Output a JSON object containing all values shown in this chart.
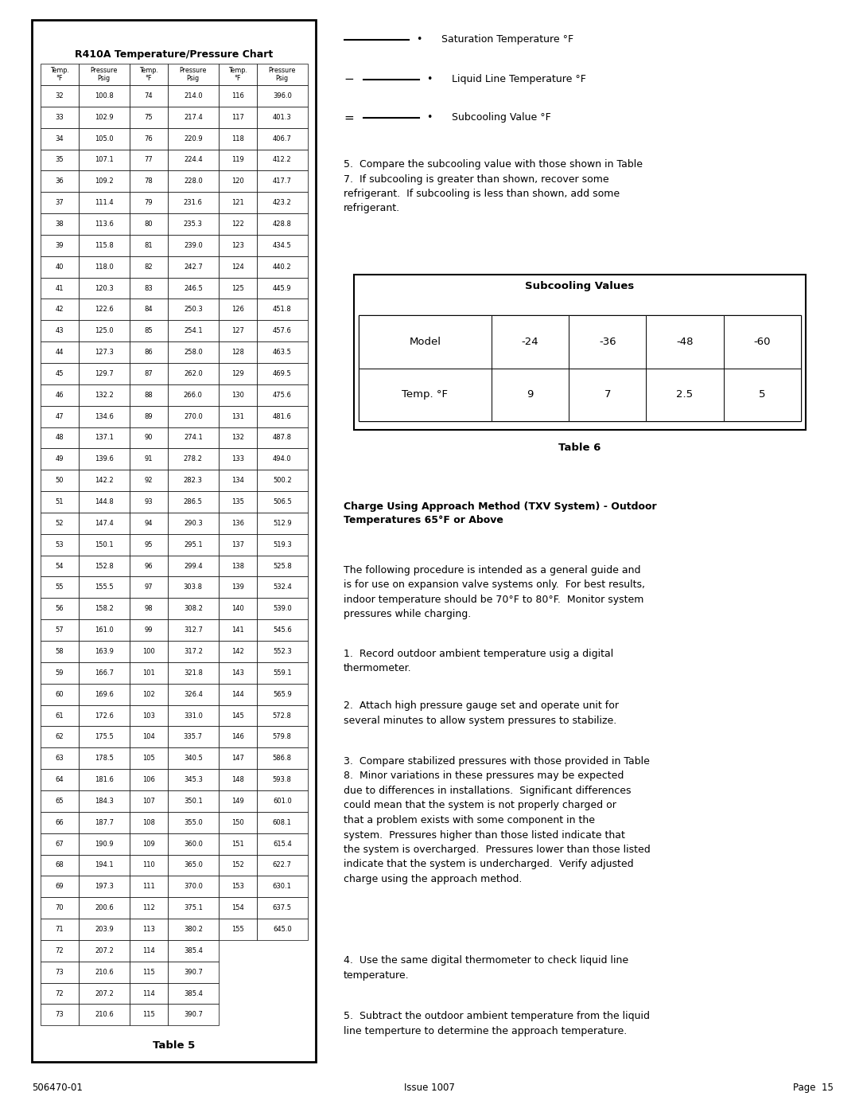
{
  "title": "R410A Temperature/Pressure Chart",
  "table5_title": "Table 5",
  "table6_title": "Table 6",
  "data_col1": [
    [
      32,
      100.8
    ],
    [
      33,
      102.9
    ],
    [
      34,
      105.0
    ],
    [
      35,
      107.1
    ],
    [
      36,
      109.2
    ],
    [
      37,
      111.4
    ],
    [
      38,
      113.6
    ],
    [
      39,
      115.8
    ],
    [
      40,
      118.0
    ],
    [
      41,
      120.3
    ],
    [
      42,
      122.6
    ],
    [
      43,
      125.0
    ],
    [
      44,
      127.3
    ],
    [
      45,
      129.7
    ],
    [
      46,
      132.2
    ],
    [
      47,
      134.6
    ],
    [
      48,
      137.1
    ],
    [
      49,
      139.6
    ],
    [
      50,
      142.2
    ],
    [
      51,
      144.8
    ],
    [
      52,
      147.4
    ],
    [
      53,
      150.1
    ],
    [
      54,
      152.8
    ],
    [
      55,
      155.5
    ],
    [
      56,
      158.2
    ],
    [
      57,
      161.0
    ],
    [
      58,
      163.9
    ],
    [
      59,
      166.7
    ],
    [
      60,
      169.6
    ],
    [
      61,
      172.6
    ],
    [
      62,
      175.5
    ],
    [
      63,
      178.5
    ],
    [
      64,
      181.6
    ],
    [
      65,
      184.3
    ],
    [
      66,
      187.7
    ],
    [
      67,
      190.9
    ],
    [
      68,
      194.1
    ],
    [
      69,
      197.3
    ],
    [
      70,
      200.6
    ],
    [
      71,
      203.9
    ],
    [
      72,
      207.2
    ],
    [
      73,
      210.6
    ],
    [
      72,
      207.2
    ],
    [
      73,
      210.6
    ]
  ],
  "data_col2": [
    [
      74,
      214.0
    ],
    [
      75,
      217.4
    ],
    [
      76,
      220.9
    ],
    [
      77,
      224.4
    ],
    [
      78,
      228.0
    ],
    [
      79,
      231.6
    ],
    [
      80,
      235.3
    ],
    [
      81,
      239.0
    ],
    [
      82,
      242.7
    ],
    [
      83,
      246.5
    ],
    [
      84,
      250.3
    ],
    [
      85,
      254.1
    ],
    [
      86,
      258.0
    ],
    [
      87,
      262.0
    ],
    [
      88,
      266.0
    ],
    [
      89,
      270.0
    ],
    [
      90,
      274.1
    ],
    [
      91,
      278.2
    ],
    [
      92,
      282.3
    ],
    [
      93,
      286.5
    ],
    [
      94,
      290.3
    ],
    [
      95,
      295.1
    ],
    [
      96,
      299.4
    ],
    [
      97,
      303.8
    ],
    [
      98,
      308.2
    ],
    [
      99,
      312.7
    ],
    [
      100,
      317.2
    ],
    [
      101,
      321.8
    ],
    [
      102,
      326.4
    ],
    [
      103,
      331.0
    ],
    [
      104,
      335.7
    ],
    [
      105,
      340.5
    ],
    [
      106,
      345.3
    ],
    [
      107,
      350.1
    ],
    [
      108,
      355.0
    ],
    [
      109,
      360.0
    ],
    [
      110,
      365.0
    ],
    [
      111,
      370.0
    ],
    [
      112,
      375.1
    ],
    [
      113,
      380.2
    ],
    [
      114,
      385.4
    ],
    [
      115,
      390.7
    ],
    [
      114,
      385.4
    ],
    [
      115,
      390.7
    ]
  ],
  "data_col3": [
    [
      116,
      396.0
    ],
    [
      117,
      401.3
    ],
    [
      118,
      406.7
    ],
    [
      119,
      412.2
    ],
    [
      120,
      417.7
    ],
    [
      121,
      423.2
    ],
    [
      122,
      428.8
    ],
    [
      123,
      434.5
    ],
    [
      124,
      440.2
    ],
    [
      125,
      445.9
    ],
    [
      126,
      451.8
    ],
    [
      127,
      457.6
    ],
    [
      128,
      463.5
    ],
    [
      129,
      469.5
    ],
    [
      130,
      475.6
    ],
    [
      131,
      481.6
    ],
    [
      132,
      487.8
    ],
    [
      133,
      494.0
    ],
    [
      134,
      500.2
    ],
    [
      135,
      506.5
    ],
    [
      136,
      512.9
    ],
    [
      137,
      519.3
    ],
    [
      138,
      525.8
    ],
    [
      139,
      532.4
    ],
    [
      140,
      539.0
    ],
    [
      141,
      545.6
    ],
    [
      142,
      552.3
    ],
    [
      143,
      559.1
    ],
    [
      144,
      565.9
    ],
    [
      145,
      572.8
    ],
    [
      146,
      579.8
    ],
    [
      147,
      586.8
    ],
    [
      148,
      593.8
    ],
    [
      149,
      601.0
    ],
    [
      150,
      608.1
    ],
    [
      151,
      615.4
    ],
    [
      152,
      622.7
    ],
    [
      153,
      630.1
    ],
    [
      154,
      637.5
    ],
    [
      155,
      645.0
    ]
  ],
  "subcooling_models": [
    "-24",
    "-36",
    "-48",
    "-60"
  ],
  "subcooling_values": [
    "9",
    "7",
    "2.5",
    "5"
  ],
  "footer_left": "506470-01",
  "footer_center": "Issue 1007",
  "footer_right": "Page  15",
  "bg_color": "#ffffff"
}
